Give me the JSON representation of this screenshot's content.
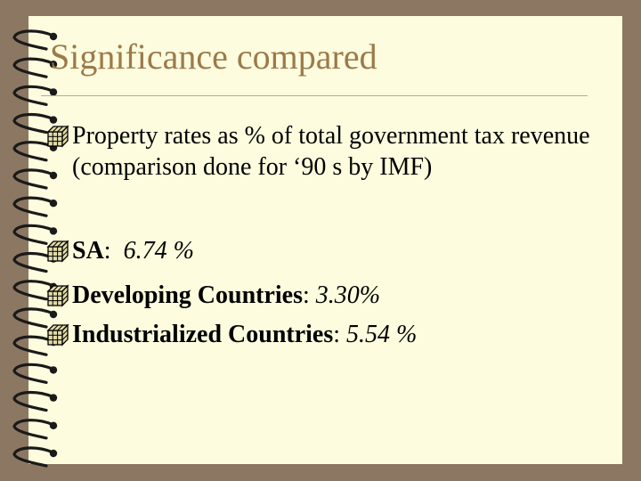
{
  "slide": {
    "title": "Significance compared",
    "bullets": [
      {
        "text": "Property rates as % of total government tax revenue (comparison done for ‘90 s by IMF)"
      },
      {
        "label": "SA",
        "sep": ":",
        "value": "6.74 %"
      },
      {
        "label": "Developing Countries",
        "sep": ":",
        "value": "3.30%"
      },
      {
        "label": "Industrialized Countries",
        "sep": ":",
        "value": "5.54 %"
      }
    ]
  },
  "colors": {
    "background": "#8c7762",
    "page": "#fdfcde",
    "title": "#9c7a4a",
    "bullet_icon": "#e2dba8"
  },
  "icons": {
    "bullet": "cube-bullet-icon",
    "binding": "spiral-binding-icon"
  }
}
